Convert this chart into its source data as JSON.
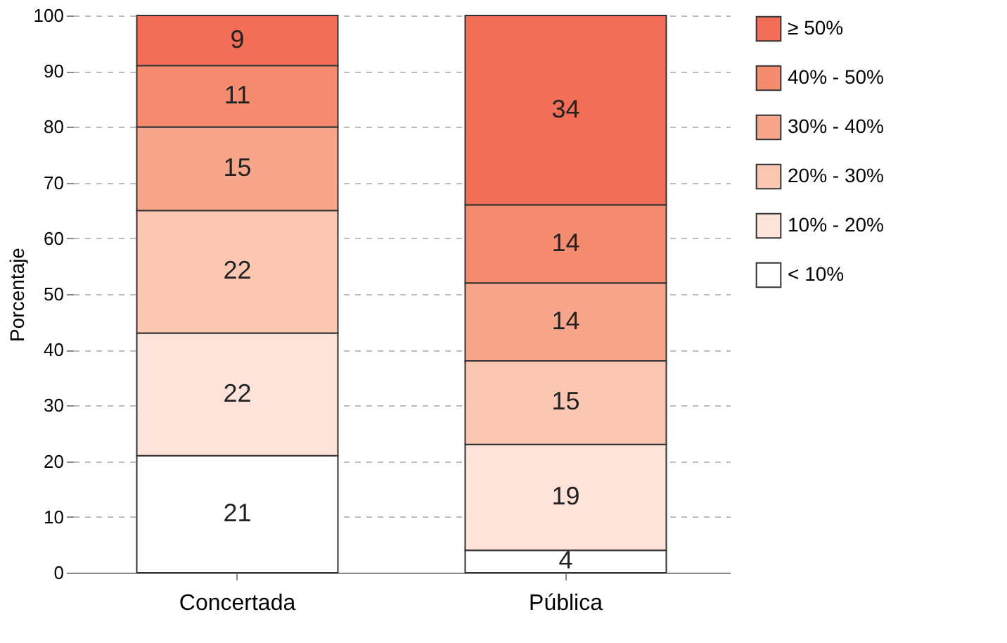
{
  "chart_data": {
    "type": "bar",
    "stacked": true,
    "ylabel": "Porcentaje",
    "categories": [
      "Concertada",
      "Pública"
    ],
    "series": [
      {
        "name": "< 10%",
        "color": "#ffffff",
        "values": [
          21,
          4
        ]
      },
      {
        "name": "10% - 20%",
        "color": "#fde3d9",
        "values": [
          22,
          19
        ]
      },
      {
        "name": "20% - 30%",
        "color": "#fbc6b2",
        "values": [
          22,
          15
        ]
      },
      {
        "name": "30% - 40%",
        "color": "#f8a68b",
        "values": [
          15,
          14
        ]
      },
      {
        "name": "40% - 50%",
        "color": "#f58c6f",
        "values": [
          11,
          14
        ]
      },
      {
        "name": "≥ 50%",
        "color": "#f26e56",
        "values": [
          9,
          34
        ]
      }
    ],
    "ylim": [
      0,
      100
    ],
    "yticks": [
      0,
      10,
      20,
      30,
      40,
      50,
      60,
      70,
      80,
      90,
      100
    ],
    "grid": "y",
    "legend": "right",
    "data_labels": true
  }
}
